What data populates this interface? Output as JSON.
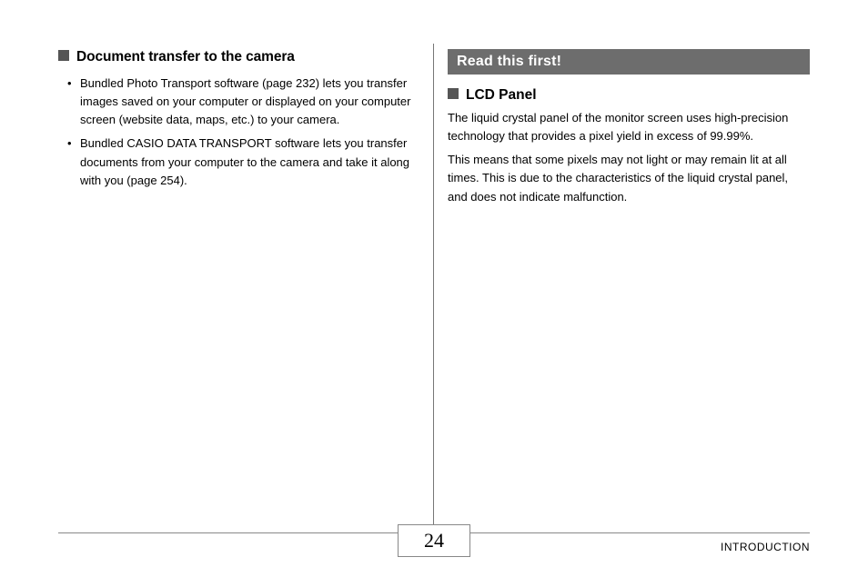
{
  "leftColumn": {
    "heading": "Document transfer to the camera",
    "bullets": [
      "Bundled Photo Transport software (page 232) lets you transfer images saved on your computer or displayed on your computer screen (website data, maps, etc.) to your camera.",
      "Bundled CASIO DATA TRANSPORT software lets you transfer documents from your computer to the camera and take it along with you (page 254)."
    ]
  },
  "rightColumn": {
    "callout": "Read this first!",
    "subheading": "LCD Panel",
    "paragraphs": [
      "The liquid crystal panel of the monitor screen uses high-precision technology that provides a pixel yield in excess of 99.99%.",
      "This means that some pixels may not light or may remain lit at all times. This is due to the characteristics of the liquid crystal panel, and does not indicate malfunction."
    ]
  },
  "footer": {
    "pageNumber": "24",
    "sectionLabel": "INTRODUCTION"
  },
  "colors": {
    "calloutBg": "#6d6d6d",
    "squareBullet": "#555555",
    "divider": "#777777",
    "rule": "#888888"
  }
}
